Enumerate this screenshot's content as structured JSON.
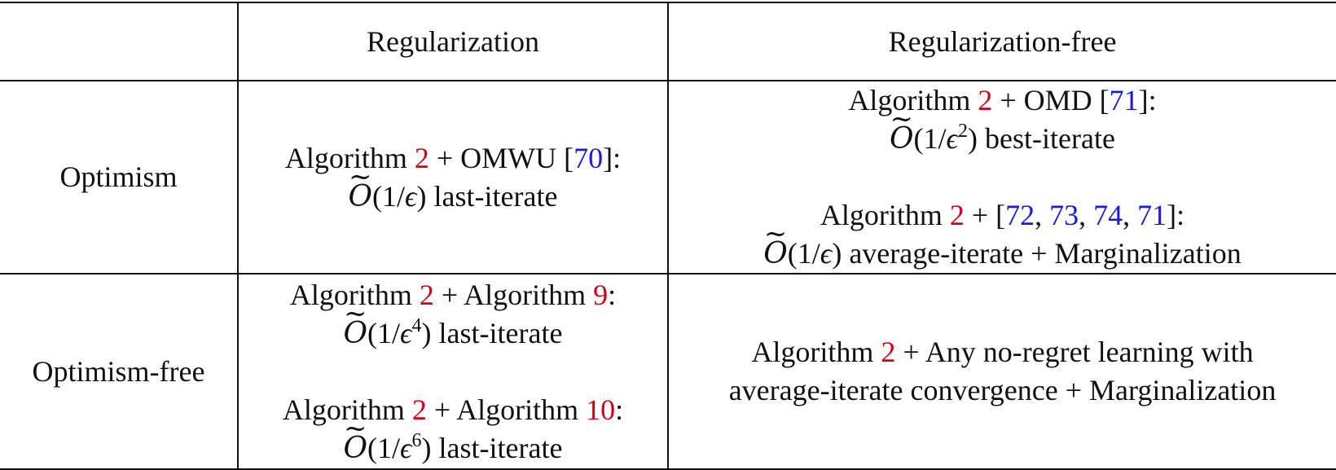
{
  "header": {
    "corner": "",
    "col_regularization": "Regularization",
    "col_regularization_free": "Regularization-free"
  },
  "rows": [
    {
      "label": "Optimism",
      "regularization": [
        {
          "pre": "Algorithm ",
          "ref1": "2",
          "mid": " + OMWU [",
          "ref2": "70",
          "post": "]:",
          "bound_symbol": "O",
          "bound_open": "(1/",
          "eps": "ϵ",
          "exp": "",
          "bound_close": ")",
          "bound_desc": " last-iterate"
        }
      ],
      "regularization_free": [
        {
          "pre": "Algorithm ",
          "ref1": "2",
          "mid": " + OMD [",
          "ref2": "71",
          "post": "]:",
          "bound_symbol": "O",
          "bound_open": "(1/",
          "eps": "ϵ",
          "exp": "2",
          "bound_close": ")",
          "bound_desc": " best-iterate"
        },
        {
          "pre": "Algorithm ",
          "ref1": "2",
          "mid": " + [",
          "refs": [
            "72",
            "73",
            "74",
            "71"
          ],
          "sep": ", ",
          "post": "]:",
          "bound_symbol": "O",
          "bound_open": "(1/",
          "eps": "ϵ",
          "exp": "",
          "bound_close": ")",
          "bound_desc": " average-iterate + Marginalization"
        }
      ]
    },
    {
      "label": "Optimism-free",
      "regularization": [
        {
          "pre": "Algorithm ",
          "ref1": "2",
          "mid": " + Algorithm ",
          "ref2": "9",
          "post": ":",
          "bound_symbol": "O",
          "bound_open": "(1/",
          "eps": "ϵ",
          "exp": "4",
          "bound_close": ")",
          "bound_desc": " last-iterate"
        },
        {
          "pre": "Algorithm ",
          "ref1": "2",
          "mid": " + Algorithm ",
          "ref2": "10",
          "post": ":",
          "bound_symbol": "O",
          "bound_open": "(1/",
          "eps": "ϵ",
          "exp": "6",
          "bound_close": ")",
          "bound_desc": " last-iterate"
        }
      ],
      "regularization_free": {
        "line1_pre": "Algorithm ",
        "line1_ref": "2",
        "line1_post": " + Any no-regret learning with",
        "line2": "average-iterate convergence + Marginalization"
      }
    }
  ],
  "colors": {
    "algorithm_ref": "#d0021b",
    "citation_ref": "#1a1adb",
    "rule": "#111111"
  }
}
